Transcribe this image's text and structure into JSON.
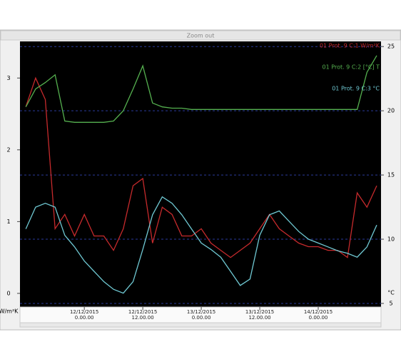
{
  "ui": {
    "button": "Zoom out"
  },
  "chart_data": {
    "type": "line",
    "y_label": "W/m²K",
    "y2_label": "°C",
    "x": [
      "11/12/2015 12.00.00",
      "11/12/2015 14.00.00",
      "11/12/2015 16.00.00",
      "11/12/2015 18.00.00",
      "11/12/2015 20.00.00",
      "11/12/2015 22.00.00",
      "12/12/2015 0.00.00",
      "12/12/2015 2.00.00",
      "12/12/2015 4.00.00",
      "12/12/2015 6.00.00",
      "12/12/2015 8.00.00",
      "12/12/2015 10.00.00",
      "12/12/2015 12.00.00",
      "12/12/2015 14.00.00",
      "12/12/2015 16.00.00",
      "12/12/2015 18.00.00",
      "12/12/2015 20.00.00",
      "12/12/2015 22.00.00",
      "13/12/2015 0.00.00",
      "13/12/2015 2.00.00",
      "13/12/2015 4.00.00",
      "13/12/2015 6.00.00",
      "13/12/2015 8.00.00",
      "13/12/2015 10.00.00",
      "13/12/2015 12.00.00",
      "13/12/2015 14.00.00",
      "13/12/2015 16.00.00",
      "13/12/2015 18.00.00",
      "13/12/2015 20.00.00",
      "13/12/2015 22.00.00",
      "14/12/2015 0.00.00",
      "14/12/2015 2.00.00",
      "14/12/2015 4.00.00",
      "14/12/2015 6.00.00",
      "14/12/2015 8.00.00",
      "14/12/2015 10.00.00",
      "14/12/2015 12.00.00"
    ],
    "xlim": [
      "11/12/2015 10.48.00",
      "14/12/2015 12.53.00"
    ],
    "xticks": [
      {
        "value": "12/12/2015 0.00.00",
        "label": "12/12/2015\n0.00.00"
      },
      {
        "value": "12/12/2015 12.00.00",
        "label": "12/12/2015\n12.00.00"
      },
      {
        "value": "13/12/2015 0.00.00",
        "label": "13/12/2015\n0.00.00"
      },
      {
        "value": "13/12/2015 12.00.00",
        "label": "13/12/2015\n12.00.00"
      },
      {
        "value": "14/12/2015 0.00.00",
        "label": "14/12/2015\n0.00.00"
      }
    ],
    "ylim": [
      -0.19,
      3.51
    ],
    "yticks": [
      0,
      1,
      2,
      3
    ],
    "y2lim": [
      4.72,
      25.4
    ],
    "y2ticks": [
      5,
      10,
      15,
      20,
      25
    ],
    "grid": "y2",
    "series": [
      {
        "name": "01 Prot. 9 C:1 W/m²K",
        "color": "#c62a2c",
        "axis": "y",
        "values": [
          2.6,
          3.0,
          2.7,
          0.9,
          1.1,
          0.8,
          1.1,
          0.8,
          0.8,
          0.6,
          0.9,
          1.5,
          1.6,
          0.7,
          1.2,
          1.1,
          0.8,
          0.8,
          0.9,
          0.7,
          0.6,
          0.5,
          0.6,
          0.7,
          0.9,
          1.1,
          0.9,
          0.8,
          0.7,
          0.65,
          0.65,
          0.6,
          0.6,
          0.5,
          1.4,
          1.2,
          1.5
        ]
      },
      {
        "name": "01 Prot. 9 C:2 [°C] T",
        "color": "#55b04f",
        "axis": "y2",
        "values": [
          20.3,
          21.7,
          22.2,
          22.8,
          19.2,
          19.1,
          19.1,
          19.1,
          19.1,
          19.2,
          20,
          21.7,
          23.5,
          20.6,
          20.3,
          20.2,
          20.2,
          20.1,
          20.1,
          20.1,
          20.1,
          20.1,
          20.1,
          20.1,
          20.1,
          20.1,
          20.1,
          20.1,
          20.1,
          20.1,
          20.1,
          20.1,
          20.1,
          20.1,
          20.1,
          23,
          24.3
        ]
      },
      {
        "name": "01 Prot. 9 C:3 °C",
        "color": "#6fc8d2",
        "axis": "y2",
        "values": [
          10.8,
          12.5,
          12.8,
          12.5,
          10.3,
          9.4,
          8.3,
          7.5,
          6.7,
          6.1,
          5.8,
          6.7,
          9.2,
          11.9,
          13.3,
          12.8,
          11.9,
          10.8,
          9.7,
          9.2,
          8.6,
          7.5,
          6.4,
          6.9,
          10.3,
          11.9,
          12.2,
          11.4,
          10.6,
          10,
          9.7,
          9.4,
          9.1,
          8.9,
          8.6,
          9.4,
          11.1
        ]
      }
    ]
  }
}
